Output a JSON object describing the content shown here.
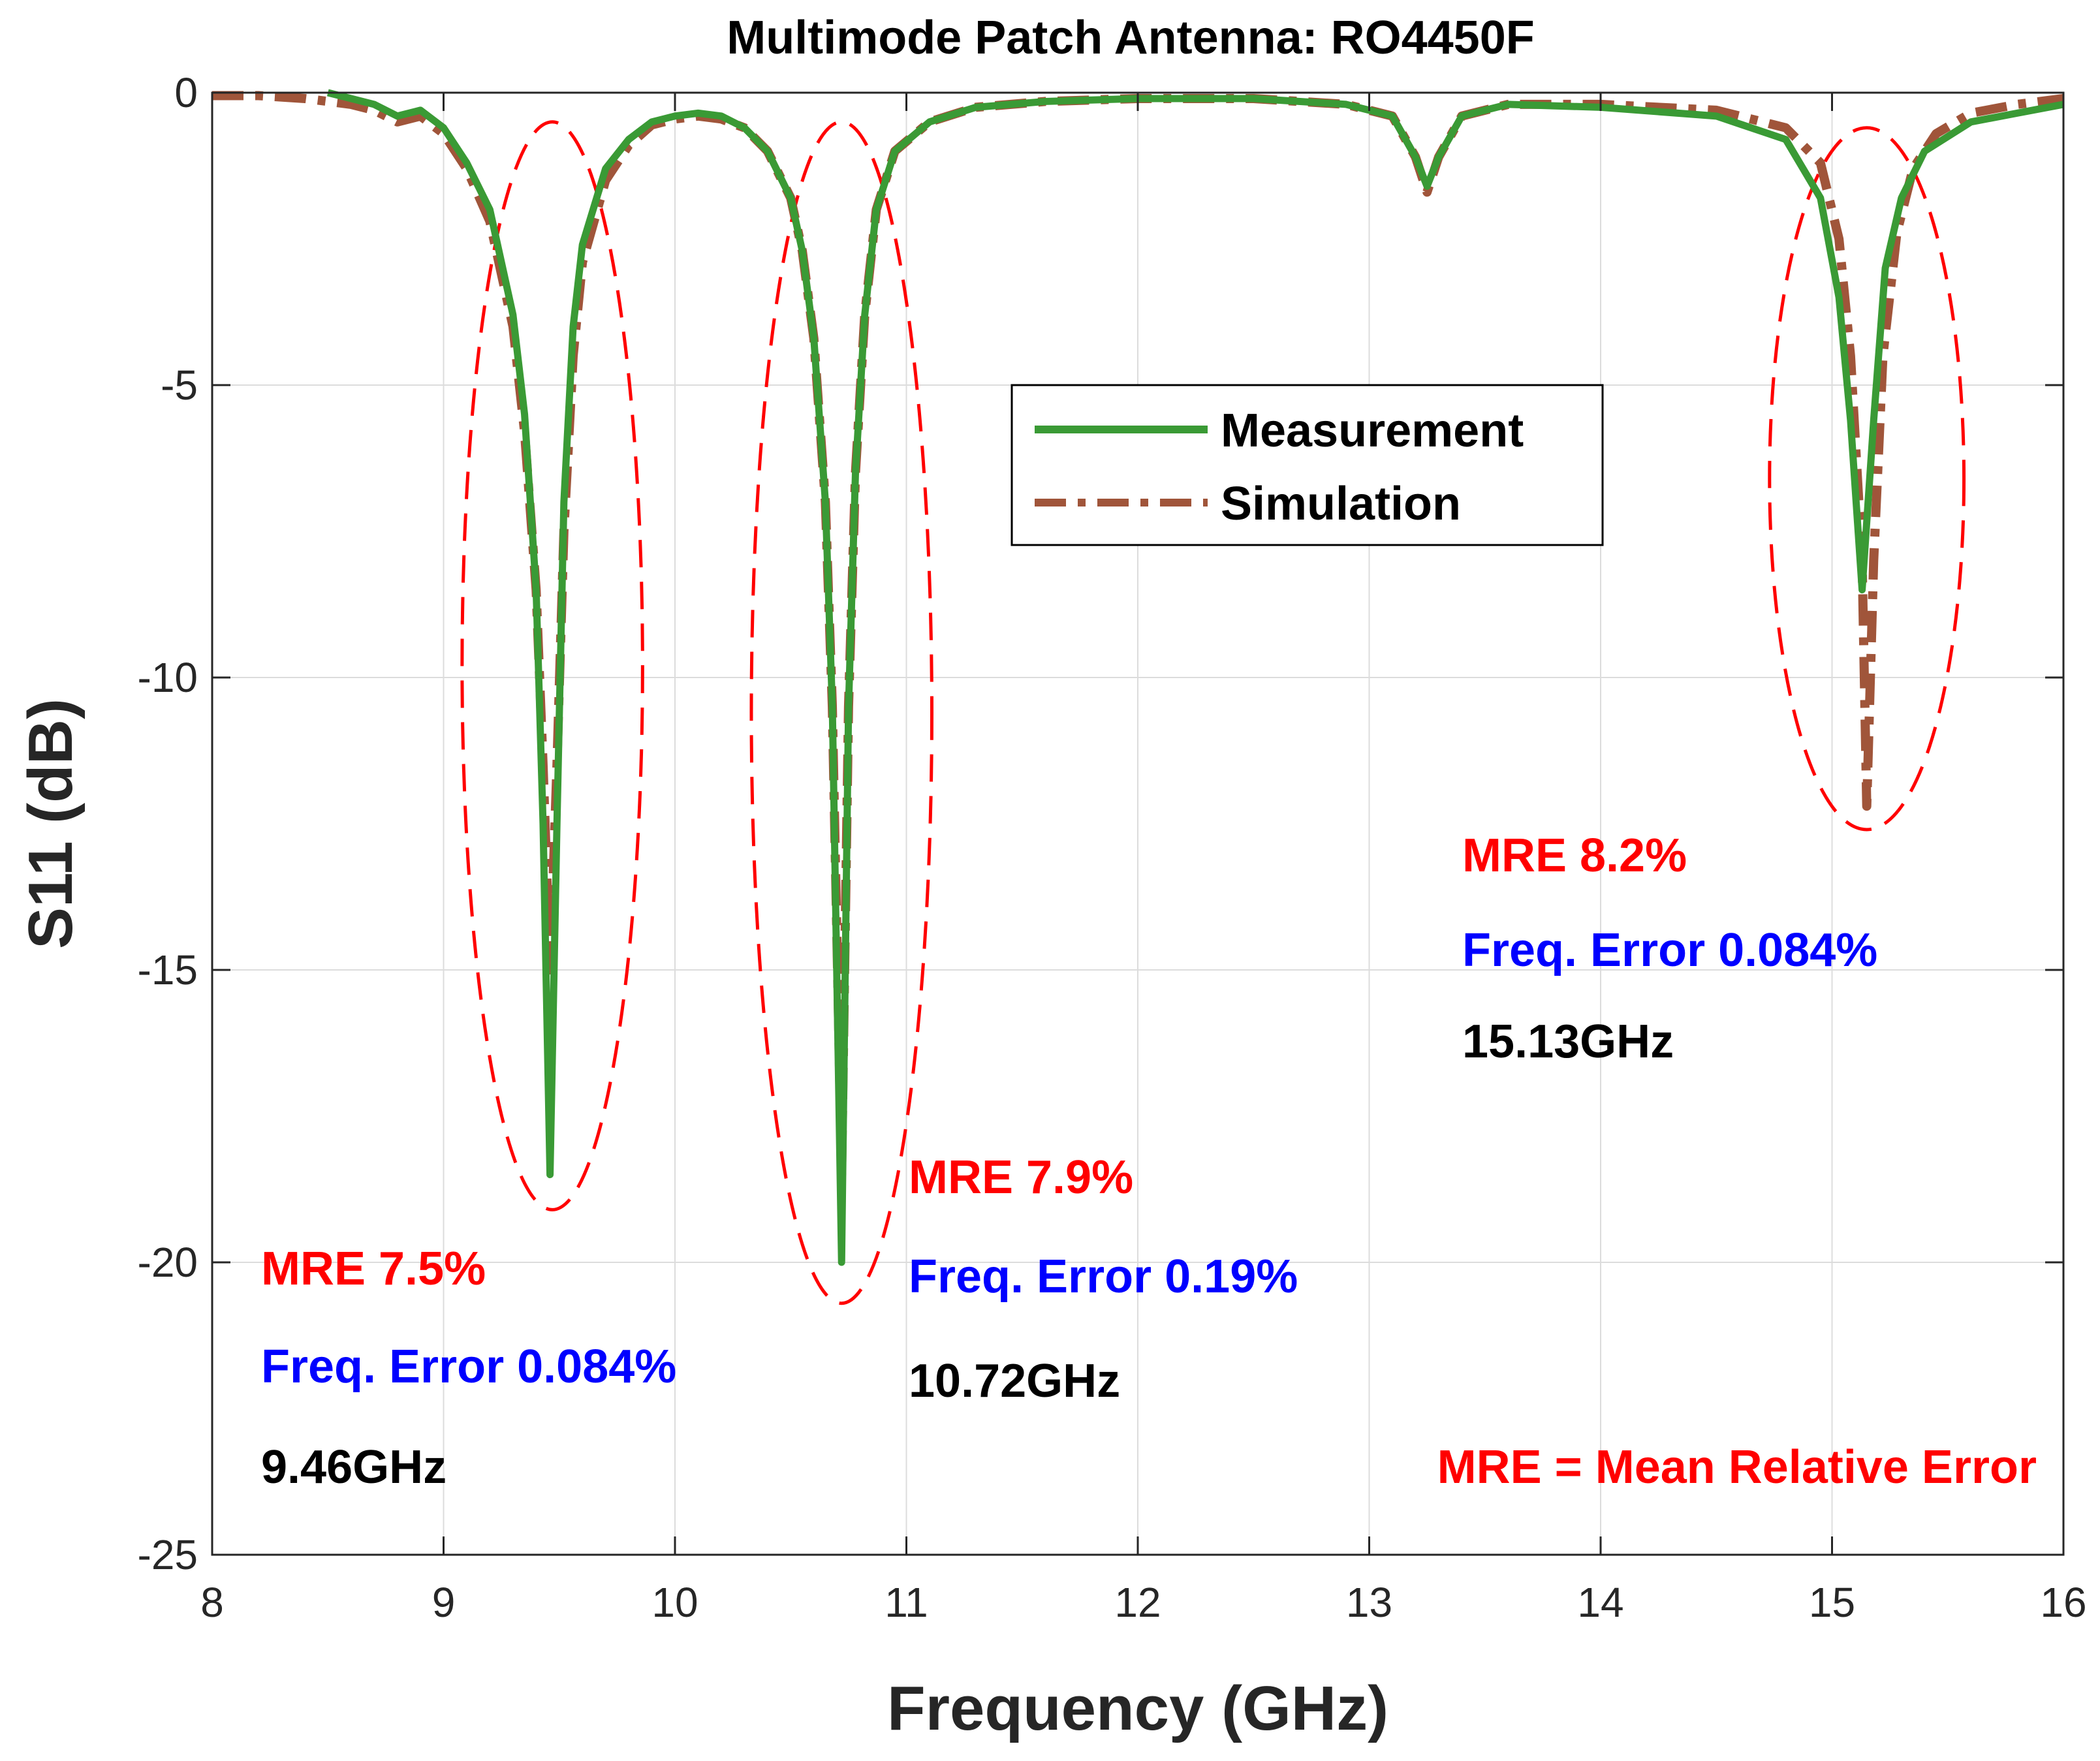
{
  "chart_data": {
    "type": "line",
    "title": "Multimode Patch Antenna: RO4450F",
    "xlabel": "Frequency (GHz)",
    "ylabel": "S11 (dB)",
    "xlim": [
      8,
      16
    ],
    "ylim": [
      -25,
      0
    ],
    "xticks": [
      "8",
      "9",
      "10",
      "11",
      "12",
      "13",
      "14",
      "15",
      "16"
    ],
    "yticks": [
      "0",
      "-5",
      "-10",
      "-15",
      "-20",
      "-25"
    ],
    "grid": true,
    "legend_position": "upper-center",
    "series": [
      {
        "name": "Measurement",
        "color": "#3a9a35",
        "style": "solid",
        "x": [
          8.5,
          8.6,
          8.7,
          8.8,
          8.9,
          9.0,
          9.1,
          9.2,
          9.3,
          9.35,
          9.4,
          9.43,
          9.46,
          9.49,
          9.52,
          9.56,
          9.6,
          9.7,
          9.8,
          9.9,
          10.0,
          10.1,
          10.2,
          10.3,
          10.4,
          10.5,
          10.55,
          10.6,
          10.65,
          10.68,
          10.72,
          10.75,
          10.78,
          10.82,
          10.87,
          10.95,
          11.1,
          11.3,
          11.6,
          12.0,
          12.5,
          12.9,
          13.1,
          13.2,
          13.25,
          13.3,
          13.4,
          13.6,
          14.0,
          14.5,
          14.8,
          14.95,
          15.03,
          15.08,
          15.13,
          15.18,
          15.23,
          15.3,
          15.4,
          15.6,
          15.8,
          16.0
        ],
        "y": [
          0.0,
          -0.1,
          -0.2,
          -0.4,
          -0.3,
          -0.6,
          -1.2,
          -2.0,
          -3.8,
          -5.5,
          -8.5,
          -12.5,
          -18.5,
          -12.5,
          -7.0,
          -4.0,
          -2.6,
          -1.3,
          -0.8,
          -0.5,
          -0.4,
          -0.35,
          -0.4,
          -0.6,
          -1.0,
          -1.8,
          -2.7,
          -4.2,
          -7.0,
          -10.5,
          -20.0,
          -10.5,
          -6.5,
          -3.8,
          -2.0,
          -1.0,
          -0.5,
          -0.25,
          -0.15,
          -0.1,
          -0.1,
          -0.2,
          -0.4,
          -1.1,
          -1.6,
          -1.1,
          -0.4,
          -0.2,
          -0.25,
          -0.4,
          -0.8,
          -1.8,
          -3.5,
          -5.6,
          -8.5,
          -5.6,
          -3.0,
          -1.8,
          -1.0,
          -0.5,
          -0.35,
          -0.2
        ]
      },
      {
        "name": "Simulation",
        "color": "#a0553a",
        "style": "dashdot",
        "x": [
          8.0,
          8.2,
          8.4,
          8.6,
          8.7,
          8.8,
          8.9,
          9.0,
          9.1,
          9.2,
          9.3,
          9.35,
          9.4,
          9.43,
          9.46,
          9.49,
          9.52,
          9.56,
          9.6,
          9.7,
          9.8,
          9.9,
          10.0,
          10.1,
          10.2,
          10.3,
          10.4,
          10.5,
          10.55,
          10.6,
          10.65,
          10.68,
          10.72,
          10.75,
          10.78,
          10.82,
          10.87,
          10.95,
          11.1,
          11.3,
          11.6,
          12.0,
          12.5,
          12.9,
          13.1,
          13.2,
          13.25,
          13.3,
          13.4,
          13.6,
          14.0,
          14.5,
          14.8,
          14.95,
          15.03,
          15.08,
          15.13,
          15.15,
          15.18,
          15.22,
          15.28,
          15.35,
          15.45,
          15.6,
          15.8,
          16.0
        ],
        "y": [
          -0.05,
          -0.05,
          -0.1,
          -0.2,
          -0.3,
          -0.5,
          -0.4,
          -0.7,
          -1.3,
          -2.2,
          -4.0,
          -5.8,
          -8.5,
          -11.5,
          -15.0,
          -11.5,
          -7.5,
          -4.5,
          -2.9,
          -1.5,
          -0.9,
          -0.55,
          -0.45,
          -0.4,
          -0.45,
          -0.6,
          -1.0,
          -1.8,
          -2.7,
          -4.2,
          -7.0,
          -10.5,
          -18.5,
          -10.5,
          -6.5,
          -3.8,
          -2.0,
          -1.0,
          -0.5,
          -0.25,
          -0.15,
          -0.1,
          -0.1,
          -0.2,
          -0.4,
          -1.1,
          -1.7,
          -1.1,
          -0.4,
          -0.2,
          -0.2,
          -0.3,
          -0.6,
          -1.2,
          -2.5,
          -4.5,
          -8.0,
          -12.2,
          -8.0,
          -4.5,
          -2.4,
          -1.3,
          -0.7,
          -0.35,
          -0.2,
          -0.1
        ]
      }
    ],
    "ellipses": [
      {
        "cx": 9.47,
        "cy": -9.8,
        "rx": 0.39,
        "ry": 9.3
      },
      {
        "cx": 10.72,
        "cy": -10.6,
        "rx": 0.39,
        "ry": 10.1
      },
      {
        "cx": 15.15,
        "cy": -6.6,
        "rx": 0.42,
        "ry": 6.0
      }
    ],
    "ellipse_color": "#ff0000",
    "annotations": [
      {
        "mre": "MRE 7.5%",
        "freq_error": "Freq. Error 0.084%",
        "freq": "9.46GHz"
      },
      {
        "mre": "MRE 7.9%",
        "freq_error": "Freq. Error 0.19%",
        "freq": "10.72GHz"
      },
      {
        "mre": "MRE 8.2%",
        "freq_error": "Freq. Error 0.084%",
        "freq": "15.13GHz"
      }
    ],
    "annotation_colors": {
      "mre": "#ff0000",
      "freq_error": "#0000ff",
      "freq": "#000000"
    },
    "footnote": "MRE = Mean Relative Error"
  }
}
